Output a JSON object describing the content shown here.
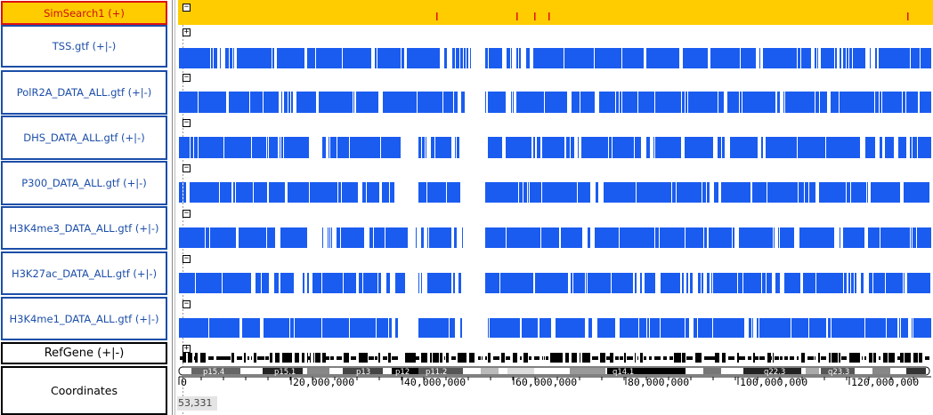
{
  "tracks": [
    {
      "label": "SimSearch1 (+)",
      "toggle": "−"
    },
    {
      "label": "TSS.gtf (+|-)",
      "toggle": "+"
    },
    {
      "label": "PolR2A_DATA_ALL.gtf (+|-)",
      "toggle": "−"
    },
    {
      "label": "DHS_DATA_ALL.gtf (+|-)",
      "toggle": "−"
    },
    {
      "label": "P300_DATA_ALL.gtf (+|-)",
      "toggle": "−"
    },
    {
      "label": "H3K4me3_DATA_ALL.gtf (+|-)",
      "toggle": "−"
    },
    {
      "label": "H3K27ac_DATA_ALL.gtf (+|-)",
      "toggle": "−"
    },
    {
      "label": "H3K4me1_DATA_ALL.gtf (+|-)",
      "toggle": "−"
    },
    {
      "label": "RefGene (+|-)",
      "toggle": "+"
    },
    {
      "label": "Coordinates",
      "toggle": ""
    }
  ],
  "ideogram": {
    "bands": [
      "p15.4",
      "p15.1",
      "p13",
      "p12",
      "p11.2",
      "q14.1",
      "q22.3",
      "q23.3"
    ]
  },
  "coordinates": {
    "ticks": [
      "0",
      "20,000,000",
      "40,000,000",
      "60,000,000",
      "80,000,000",
      "100,000,000",
      "120,000,000"
    ]
  },
  "footer": {
    "position": "53,331"
  },
  "colors": {
    "track_fill": "#1a5cf0",
    "simsearch_bg": "#ffcc00",
    "simsearch_hit": "#dd1111"
  }
}
